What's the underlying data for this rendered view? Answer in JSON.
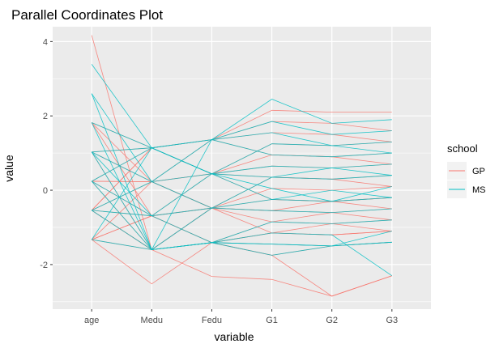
{
  "chart_data": {
    "type": "line",
    "subtype": "parallel-coordinates",
    "title": "Parallel Coordinates Plot",
    "xlabel": "variable",
    "ylabel": "value",
    "x_categories": [
      "age",
      "Medu",
      "Fedu",
      "G1",
      "G2",
      "G3"
    ],
    "ylim": [
      -3.2,
      4.4
    ],
    "y_ticks": [
      -2,
      0,
      2,
      4
    ],
    "grid": true,
    "legend": {
      "title": "school",
      "position": "right",
      "entries": [
        {
          "name": "GP",
          "color": "#F8766D"
        },
        {
          "name": "MS",
          "color": "#00BFC4"
        }
      ]
    },
    "axis_levels": {
      "age": [
        -1.33,
        -0.54,
        0.24,
        1.03,
        1.82,
        2.6,
        3.39,
        4.17
      ],
      "Medu": [
        -2.52,
        -1.6,
        -0.69,
        0.23,
        1.14
      ],
      "Fedu": [
        -2.32,
        -1.41,
        -0.48,
        0.44,
        1.36
      ],
      "G1": [
        -2.4,
        -1.75,
        -1.45,
        -1.15,
        -0.85,
        -0.55,
        -0.25,
        0.05,
        0.35,
        0.65,
        0.95,
        1.25,
        1.55,
        1.85,
        2.15,
        2.45
      ],
      "G2": [
        -2.85,
        -1.5,
        -1.2,
        -0.9,
        -0.6,
        -0.3,
        0.0,
        0.3,
        0.6,
        0.9,
        1.2,
        1.5,
        1.8,
        2.1
      ],
      "G3": [
        -2.3,
        -1.4,
        -1.1,
        -0.8,
        -0.5,
        -0.2,
        0.1,
        0.4,
        0.7,
        1.0,
        1.3,
        1.6,
        1.9,
        2.1
      ]
    },
    "series": [
      {
        "name": "GP",
        "values": [
          [
            4.17,
            -1.6,
            -0.48,
            -0.55,
            -0.6,
            -0.5
          ],
          [
            1.82,
            1.14,
            1.36,
            1.55,
            1.5,
            1.3
          ],
          [
            1.82,
            -0.69,
            -1.41,
            -1.15,
            -1.2,
            -1.1
          ],
          [
            1.03,
            1.14,
            0.44,
            0.95,
            0.9,
            1.0
          ],
          [
            1.03,
            -1.6,
            -1.41,
            -1.75,
            -1.5,
            -1.4
          ],
          [
            0.24,
            0.23,
            -0.48,
            0.05,
            0.0,
            0.1
          ],
          [
            0.24,
            1.14,
            1.36,
            2.15,
            2.1,
            2.1
          ],
          [
            0.24,
            -0.69,
            0.44,
            -0.25,
            -0.3,
            -0.2
          ],
          [
            -0.54,
            -1.6,
            -2.32,
            -2.4,
            -2.85,
            -2.3
          ],
          [
            -0.54,
            0.23,
            0.44,
            0.35,
            0.3,
            0.4
          ],
          [
            -0.54,
            1.14,
            1.36,
            1.85,
            1.8,
            1.6
          ],
          [
            -0.54,
            -0.69,
            -0.48,
            -0.85,
            -0.9,
            -0.8
          ],
          [
            -1.33,
            -1.6,
            -1.41,
            -1.45,
            -1.5,
            -1.4
          ],
          [
            -1.33,
            -0.69,
            -0.48,
            -0.55,
            -0.3,
            -0.5
          ],
          [
            -1.33,
            0.23,
            0.44,
            0.65,
            0.6,
            0.7
          ],
          [
            -1.33,
            -2.52,
            -1.41,
            -1.15,
            -1.2,
            -1.1
          ],
          [
            1.03,
            0.23,
            -0.48,
            -0.25,
            -0.3,
            -0.2
          ],
          [
            0.24,
            -1.6,
            -1.41,
            -1.75,
            -2.85,
            -2.3
          ],
          [
            -0.54,
            1.14,
            0.44,
            1.25,
            1.2,
            1.3
          ],
          [
            -1.33,
            -0.69,
            -1.41,
            -0.85,
            -0.6,
            -0.8
          ],
          [
            1.82,
            0.23,
            1.36,
            0.95,
            0.9,
            0.7
          ],
          [
            0.24,
            0.23,
            -0.48,
            0.35,
            0.3,
            0.1
          ],
          [
            -0.54,
            -1.6,
            -0.48,
            -1.15,
            -0.9,
            -1.1
          ]
        ]
      },
      {
        "name": "MS",
        "values": [
          [
            3.39,
            1.14,
            1.36,
            2.45,
            1.8,
            1.9
          ],
          [
            2.6,
            -1.6,
            -1.41,
            -1.45,
            -1.5,
            -1.4
          ],
          [
            1.82,
            1.14,
            0.44,
            1.25,
            1.2,
            1.0
          ],
          [
            1.82,
            -1.6,
            -0.48,
            -0.55,
            -0.6,
            -0.5
          ],
          [
            1.03,
            -0.69,
            -1.41,
            -0.85,
            -0.9,
            -0.8
          ],
          [
            1.03,
            1.14,
            1.36,
            1.85,
            1.5,
            1.6
          ],
          [
            1.03,
            0.23,
            0.44,
            0.35,
            0.3,
            0.4
          ],
          [
            0.24,
            -1.6,
            -1.41,
            -1.15,
            -1.2,
            -2.3
          ],
          [
            0.24,
            1.14,
            0.44,
            0.65,
            0.6,
            0.7
          ],
          [
            0.24,
            -0.69,
            -0.48,
            -0.25,
            0.0,
            -0.2
          ],
          [
            -0.54,
            -1.6,
            -1.41,
            -1.45,
            -1.5,
            -1.1
          ],
          [
            -0.54,
            0.23,
            1.36,
            0.95,
            0.9,
            1.0
          ],
          [
            -1.33,
            -1.6,
            -1.41,
            -1.75,
            -1.5,
            -1.4
          ],
          [
            -1.33,
            1.14,
            0.44,
            0.05,
            -0.3,
            -0.2
          ],
          [
            2.6,
            0.23,
            -0.48,
            0.35,
            0.6,
            0.4
          ],
          [
            1.03,
            -1.6,
            1.36,
            1.55,
            1.2,
            1.3
          ],
          [
            -0.54,
            -0.69,
            0.44,
            -0.25,
            -0.3,
            0.1
          ]
        ]
      }
    ]
  }
}
